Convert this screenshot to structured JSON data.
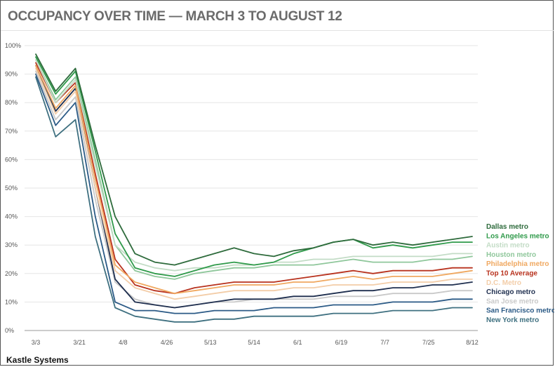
{
  "chart_data": {
    "type": "line",
    "title": "OCCUPANCY OVER TIME — MARCH 3 TO AUGUST 12",
    "xlabel": "",
    "ylabel": "",
    "x_tick_labels": [
      "3/3",
      "3/21",
      "4/8",
      "4/26",
      "5/13",
      "5/14",
      "6/1",
      "6/19",
      "7/7",
      "7/25",
      "8/12"
    ],
    "y_tick_labels": [
      "0%",
      "10%",
      "20%",
      "30%",
      "40%",
      "50%",
      "60%",
      "70%",
      "80%",
      "90%",
      "100%"
    ],
    "ylim": [
      0,
      100
    ],
    "grid": "horizontal",
    "legend_placement": "right",
    "x_points": [
      "3/3",
      "3/7",
      "3/11",
      "3/16",
      "3/21",
      "3/26",
      "4/1",
      "4/8",
      "4/15",
      "4/26",
      "5/6",
      "5/13",
      "5/14",
      "5/24",
      "6/1",
      "6/10",
      "6/19",
      "6/29",
      "7/7",
      "7/16",
      "7/25",
      "8/4",
      "8/12"
    ],
    "series": [
      {
        "name": "Dallas metro",
        "color": "#2e6b3c",
        "values": [
          97,
          84,
          92,
          65,
          40,
          27,
          24,
          23,
          25,
          27,
          29,
          27,
          26,
          28,
          29,
          31,
          32,
          30,
          31,
          30,
          31,
          32,
          33
        ]
      },
      {
        "name": "Los Angeles metro",
        "color": "#2f9a4a",
        "values": [
          96,
          83,
          91,
          63,
          34,
          22,
          20,
          19,
          21,
          23,
          24,
          23,
          24,
          27,
          29,
          31,
          32,
          29,
          30,
          29,
          30,
          31,
          31
        ]
      },
      {
        "name": "Austin metro",
        "color": "#c3dcc6",
        "values": [
          95,
          80,
          88,
          58,
          30,
          24,
          22,
          21,
          22,
          22,
          23,
          23,
          24,
          24,
          25,
          25,
          26,
          26,
          26,
          26,
          26,
          27,
          27
        ]
      },
      {
        "name": "Houston metro",
        "color": "#8fc79b",
        "values": [
          95,
          81,
          89,
          60,
          30,
          21,
          19,
          18,
          20,
          21,
          22,
          22,
          23,
          23,
          23,
          24,
          25,
          24,
          24,
          24,
          25,
          25,
          26
        ]
      },
      {
        "name": "Philadelphia metro",
        "color": "#f0a860",
        "values": [
          93,
          78,
          86,
          53,
          23,
          17,
          15,
          13,
          14,
          15,
          16,
          16,
          16,
          17,
          17,
          18,
          19,
          18,
          19,
          19,
          19,
          20,
          21
        ]
      },
      {
        "name": "Top 10 Average",
        "color": "#b8321e",
        "values": [
          94,
          80,
          87,
          55,
          25,
          16,
          14,
          13,
          15,
          16,
          17,
          17,
          17,
          18,
          19,
          20,
          21,
          20,
          21,
          21,
          21,
          22,
          22
        ]
      },
      {
        "name": "D.C. Metro",
        "color": "#f3cda8",
        "values": [
          92,
          76,
          84,
          50,
          21,
          15,
          13,
          11,
          12,
          13,
          14,
          14,
          14,
          15,
          15,
          16,
          16,
          16,
          17,
          17,
          17,
          18,
          18
        ]
      },
      {
        "name": "Chicago metro",
        "color": "#1f2f4f",
        "values": [
          93,
          77,
          85,
          50,
          18,
          10,
          9,
          8,
          9,
          10,
          11,
          11,
          11,
          12,
          12,
          13,
          14,
          14,
          15,
          15,
          16,
          16,
          17
        ]
      },
      {
        "name": "San Jose metro",
        "color": "#c9c9c9",
        "values": [
          91,
          74,
          82,
          46,
          17,
          11,
          9,
          8,
          9,
          10,
          10,
          11,
          11,
          11,
          11,
          12,
          12,
          12,
          13,
          13,
          13,
          14,
          14
        ]
      },
      {
        "name": "San Francisco metro",
        "color": "#2b5a86",
        "values": [
          90,
          72,
          80,
          40,
          10,
          7,
          7,
          6,
          6,
          7,
          7,
          7,
          8,
          8,
          8,
          9,
          9,
          9,
          10,
          10,
          10,
          11,
          11
        ]
      },
      {
        "name": "New York metro",
        "color": "#3f7080",
        "values": [
          89,
          68,
          74,
          33,
          8,
          5,
          4,
          3,
          3,
          4,
          4,
          5,
          5,
          5,
          5,
          6,
          6,
          6,
          7,
          7,
          7,
          8,
          8
        ]
      }
    ]
  },
  "source": "Kastle Systems"
}
